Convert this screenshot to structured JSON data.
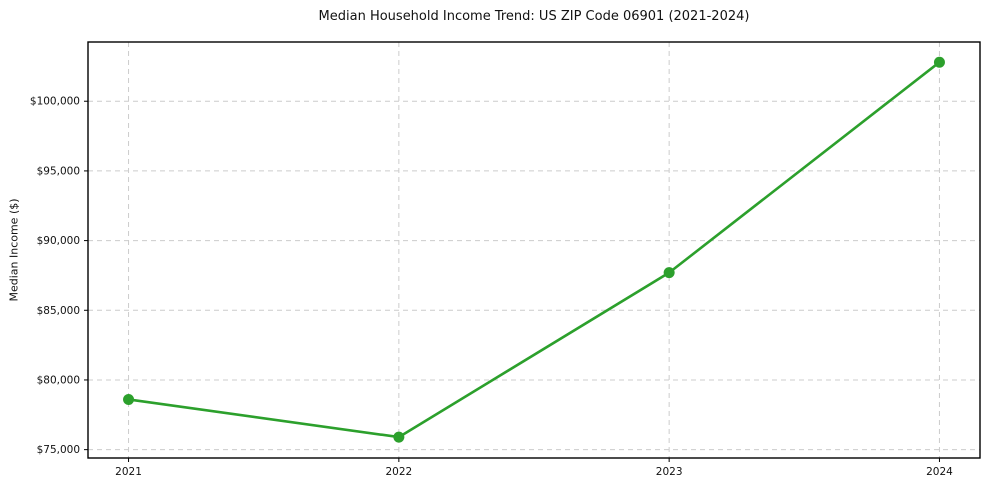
{
  "chart_data": {
    "type": "line",
    "title": "Median Household Income Trend: US ZIP Code 06901 (2021-2024)",
    "xlabel": "",
    "ylabel": "Median Income ($)",
    "categories": [
      "2021",
      "2022",
      "2023",
      "2024"
    ],
    "series": [
      {
        "name": "Median Household Income",
        "values": [
          78600,
          75900,
          87700,
          102800
        ]
      }
    ],
    "y_ticks": [
      {
        "value": 75000,
        "label": "$75,000"
      },
      {
        "value": 80000,
        "label": "$80,000"
      },
      {
        "value": 85000,
        "label": "$85,000"
      },
      {
        "value": 90000,
        "label": "$90,000"
      },
      {
        "value": 95000,
        "label": "$95,000"
      },
      {
        "value": 100000,
        "label": "$100,000"
      }
    ],
    "ylim": [
      74400,
      104250
    ],
    "grid": "dashed-both-axes",
    "legend": "none",
    "line_color": "#2ca02c",
    "marker": "circle",
    "grid_color": "#cccccc",
    "frame_color": "#000000",
    "text_color": "#111111",
    "background_color": "#ffffff"
  }
}
